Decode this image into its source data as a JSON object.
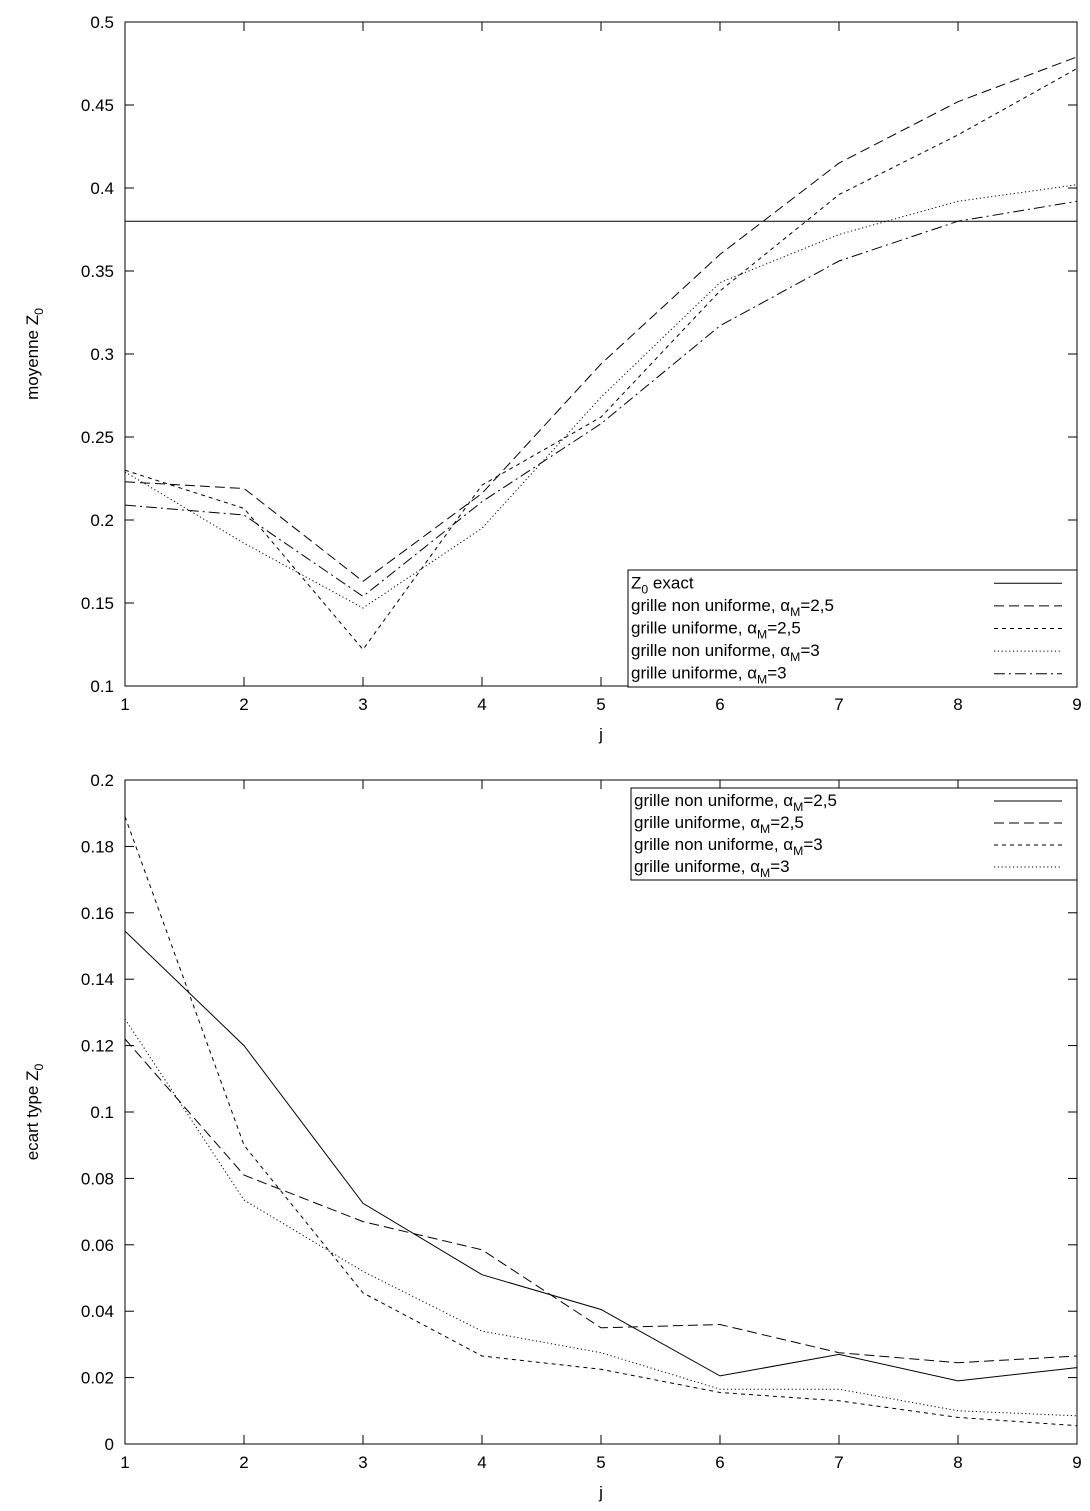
{
  "chart_data": [
    {
      "type": "line",
      "xlabel": "j",
      "ylabel": {
        "main": "moyenne Z",
        "sub": "0"
      },
      "xlim": [
        1,
        9
      ],
      "ylim": [
        0.1,
        0.5
      ],
      "x_ticks": [
        1,
        2,
        3,
        4,
        5,
        6,
        7,
        8,
        9
      ],
      "y_ticks": [
        0.1,
        0.15,
        0.2,
        0.25,
        0.3,
        0.35,
        0.4,
        0.45,
        0.5
      ],
      "y_tick_labels": [
        "0.1",
        "0.15",
        "0.2",
        "0.25",
        "0.3",
        "0.35",
        "0.4",
        "0.45",
        "0.5"
      ],
      "grid": false,
      "legend_position": "bottom-right",
      "x": [
        1,
        2,
        3,
        4,
        5,
        6,
        7,
        8,
        9
      ],
      "series": [
        {
          "name": {
            "pre": "Z",
            "sub": "0",
            "post": " exact"
          },
          "style": "solid",
          "values": [
            0.38,
            0.38,
            0.38,
            0.38,
            0.38,
            0.38,
            0.38,
            0.38,
            0.38
          ]
        },
        {
          "name": {
            "pre": "grille non uniforme, α",
            "sub": "M",
            "post": "=2,5"
          },
          "style": "dashed",
          "values": [
            0.223,
            0.219,
            0.163,
            0.216,
            0.294,
            0.36,
            0.415,
            0.452,
            0.479
          ]
        },
        {
          "name": {
            "pre": "grille uniforme, α",
            "sub": "M",
            "post": "=2,5"
          },
          "style": "short-dashed",
          "values": [
            0.23,
            0.207,
            0.122,
            0.221,
            0.262,
            0.338,
            0.396,
            0.432,
            0.472
          ]
        },
        {
          "name": {
            "pre": "grille non uniforme, α",
            "sub": "M",
            "post": "=3"
          },
          "style": "dotted",
          "values": [
            0.229,
            0.186,
            0.147,
            0.195,
            0.274,
            0.343,
            0.372,
            0.392,
            0.402
          ]
        },
        {
          "name": {
            "pre": "grille uniforme, α",
            "sub": "M",
            "post": "=3"
          },
          "style": "dash-dot",
          "values": [
            0.209,
            0.203,
            0.154,
            0.211,
            0.258,
            0.317,
            0.356,
            0.38,
            0.392
          ]
        }
      ]
    },
    {
      "type": "line",
      "xlabel": "j",
      "ylabel": {
        "main": "ecart type Z",
        "sub": "0"
      },
      "xlim": [
        1,
        9
      ],
      "ylim": [
        0,
        0.2
      ],
      "x_ticks": [
        1,
        2,
        3,
        4,
        5,
        6,
        7,
        8,
        9
      ],
      "y_ticks": [
        0,
        0.02,
        0.04,
        0.06,
        0.08,
        0.1,
        0.12,
        0.14,
        0.16,
        0.18,
        0.2
      ],
      "y_tick_labels": [
        "0",
        "0.02",
        "0.04",
        "0.06",
        "0.08",
        "0.1",
        "0.12",
        "0.14",
        "0.16",
        "0.18",
        "0.2"
      ],
      "grid": false,
      "legend_position": "top-right",
      "x": [
        1,
        2,
        3,
        4,
        5,
        6,
        7,
        8,
        9
      ],
      "series": [
        {
          "name": {
            "pre": "grille non uniforme, α",
            "sub": "M",
            "post": "=2,5"
          },
          "style": "solid",
          "values": [
            0.1545,
            0.12,
            0.0725,
            0.051,
            0.0405,
            0.0205,
            0.027,
            0.019,
            0.023
          ]
        },
        {
          "name": {
            "pre": "grille uniforme, α",
            "sub": "M",
            "post": "=2,5"
          },
          "style": "dashed",
          "values": [
            0.122,
            0.081,
            0.067,
            0.0585,
            0.035,
            0.036,
            0.0275,
            0.0245,
            0.0265
          ]
        },
        {
          "name": {
            "pre": "grille non uniforme, α",
            "sub": "M",
            "post": "=3"
          },
          "style": "short-dashed",
          "values": [
            0.189,
            0.09,
            0.0455,
            0.0265,
            0.0225,
            0.0155,
            0.013,
            0.008,
            0.0055
          ]
        },
        {
          "name": {
            "pre": "grille uniforme, α",
            "sub": "M",
            "post": "=3"
          },
          "style": "dotted",
          "values": [
            0.128,
            0.0735,
            0.052,
            0.034,
            0.0275,
            0.0165,
            0.0165,
            0.01,
            0.0085
          ]
        }
      ]
    }
  ]
}
